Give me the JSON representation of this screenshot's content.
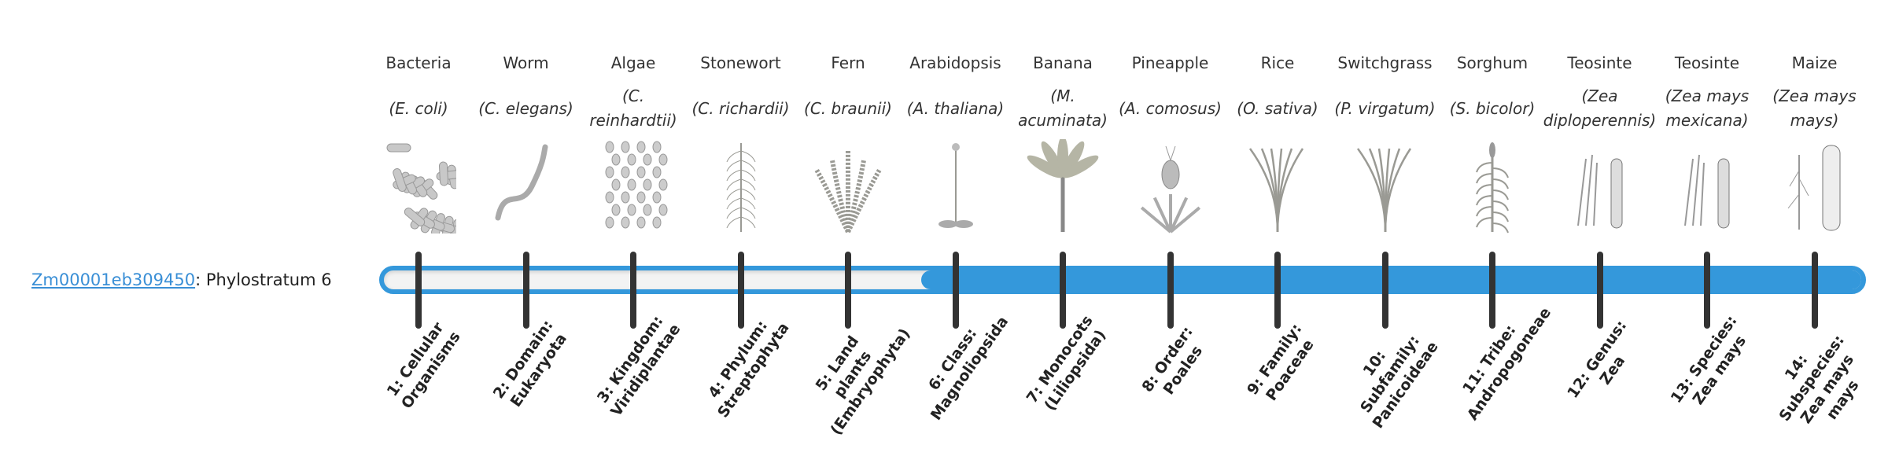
{
  "gene": {
    "id": "Zm00001eb309450",
    "suffix": ": Phylostratum 6",
    "phylostratum": 6
  },
  "colors": {
    "bar": "#3498db",
    "tick": "#333333",
    "link": "#3a8fd6",
    "bar_empty": "#f3f3f3"
  },
  "organisms": [
    {
      "common": "Bacteria",
      "species": "(E. coli)",
      "icon": "bacteria-icon",
      "kind": "rods"
    },
    {
      "common": "Worm",
      "species": "(C. elegans)",
      "icon": "worm-icon",
      "kind": "worm"
    },
    {
      "common": "Algae",
      "species": "(C. reinhardtii)",
      "icon": "algae-icon",
      "kind": "cells"
    },
    {
      "common": "Stonewort",
      "species": "(C. richardii)",
      "icon": "stonewort-icon",
      "kind": "stalk"
    },
    {
      "common": "Fern",
      "species": "(C. braunii)",
      "icon": "fern-icon",
      "kind": "fern"
    },
    {
      "common": "Arabidopsis",
      "species": "(A. thaliana)",
      "icon": "arabidopsis-icon",
      "kind": "flower"
    },
    {
      "common": "Banana",
      "species": "(M. acuminata)",
      "icon": "banana-icon",
      "kind": "palm"
    },
    {
      "common": "Pineapple",
      "species": "(A. comosus)",
      "icon": "pineapple-icon",
      "kind": "pineapple"
    },
    {
      "common": "Rice",
      "species": "(O. sativa)",
      "icon": "rice-icon",
      "kind": "grass"
    },
    {
      "common": "Switchgrass",
      "species": "(P. virgatum)",
      "icon": "switchgrass-icon",
      "kind": "grass"
    },
    {
      "common": "Sorghum",
      "species": "(S. bicolor)",
      "icon": "sorghum-icon",
      "kind": "corn"
    },
    {
      "common": "Teosinte",
      "species": "(Zea diploperennis)",
      "icon": "teosinte-icon",
      "kind": "teosinte"
    },
    {
      "common": "Teosinte",
      "species": "(Zea mays mexicana)",
      "icon": "teosinte-icon",
      "kind": "teosinte"
    },
    {
      "common": "Maize",
      "species": "(Zea mays mays)",
      "icon": "maize-icon",
      "kind": "maize"
    }
  ],
  "strata": [
    "1: Cellular Organisms",
    "2: Domain: Eukaryota",
    "3: Kingdom: Viridiplantae",
    "4: Phylum: Streptophyta",
    "5: Land plants (Embryophyta)",
    "6: Class: Magnoliopsida",
    "7: Monocots (Liliopsida)",
    "8: Order: Poales",
    "9: Family: Poaceae",
    "10: Subfamily: Panicoideae",
    "11: Tribe: Andropogoneae",
    "12: Genus: Zea",
    "13: Species: Zea mays",
    "14: Subspecies: Zea mays mays"
  ]
}
